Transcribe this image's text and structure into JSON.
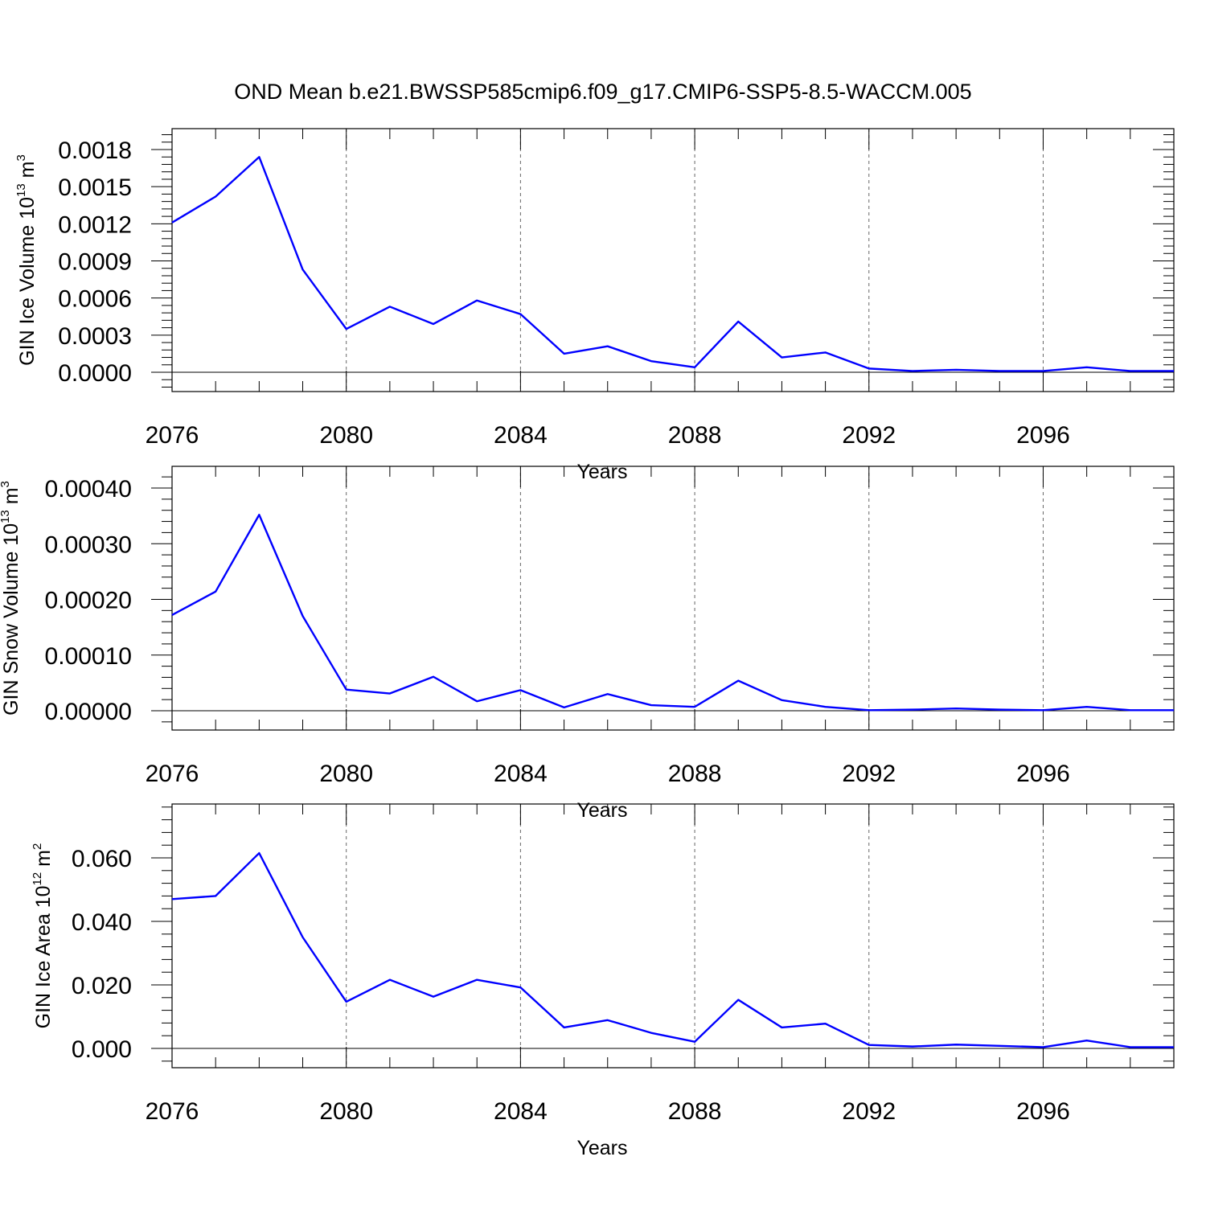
{
  "title": "OND Mean b.e21.BWSSP585cmip6.f09_g17.CMIP6-SSP5-8.5-WACCM.005",
  "colors": {
    "line": "#0000ff",
    "axis": "#000000",
    "grid": "#666666"
  },
  "chart_data": [
    {
      "type": "line",
      "ylabel": {
        "text": "GIN Ice Volume 10",
        "exp": "13",
        "unit": " m",
        "unit_exp": "3"
      },
      "xlabel": "Years",
      "xlim": [
        2076,
        2099
      ],
      "ylim": [
        0,
        0.0018
      ],
      "yticks": [
        {
          "v": 0,
          "label": "0.0000"
        },
        {
          "v": 0.0003,
          "label": "0.0003"
        },
        {
          "v": 0.0006,
          "label": "0.0006"
        },
        {
          "v": 0.0009,
          "label": "0.0009"
        },
        {
          "v": 0.0012,
          "label": "0.0012"
        },
        {
          "v": 0.0015,
          "label": "0.0015"
        },
        {
          "v": 0.0018,
          "label": "0.0018"
        }
      ],
      "xticks": [
        2076,
        2080,
        2084,
        2088,
        2092,
        2096
      ],
      "grid": "vertical-dashed",
      "x": [
        2076,
        2077,
        2078,
        2079,
        2080,
        2081,
        2082,
        2083,
        2084,
        2085,
        2086,
        2087,
        2088,
        2089,
        2090,
        2091,
        2092,
        2093,
        2094,
        2095,
        2096,
        2097,
        2098,
        2099
      ],
      "series": [
        {
          "values": [
            0.00121,
            0.00142,
            0.00174,
            0.00083,
            0.00035,
            0.00053,
            0.00039,
            0.00058,
            0.00047,
            0.00015,
            0.00021,
            9e-05,
            4e-05,
            0.00041,
            0.00012,
            0.00016,
            3e-05,
            1e-05,
            2e-05,
            1e-05,
            1e-05,
            4e-05,
            1e-05,
            1e-05
          ]
        }
      ]
    },
    {
      "type": "line",
      "ylabel": {
        "text": "GIN Snow Volume 10",
        "exp": "13",
        "unit": " m",
        "unit_exp": "3"
      },
      "xlabel": "Years",
      "xlim": [
        2076,
        2099
      ],
      "ylim": [
        0,
        0.0004
      ],
      "yticks": [
        {
          "v": 0,
          "label": "0.00000"
        },
        {
          "v": 0.0001,
          "label": "0.00010"
        },
        {
          "v": 0.0002,
          "label": "0.00020"
        },
        {
          "v": 0.0003,
          "label": "0.00030"
        },
        {
          "v": 0.0004,
          "label": "0.00040"
        }
      ],
      "xticks": [
        2076,
        2080,
        2084,
        2088,
        2092,
        2096
      ],
      "grid": "vertical-dashed",
      "x": [
        2076,
        2077,
        2078,
        2079,
        2080,
        2081,
        2082,
        2083,
        2084,
        2085,
        2086,
        2087,
        2088,
        2089,
        2090,
        2091,
        2092,
        2093,
        2094,
        2095,
        2096,
        2097,
        2098,
        2099
      ],
      "series": [
        {
          "values": [
            0.000172,
            0.000214,
            0.000352,
            0.00017,
            3.8e-05,
            3.1e-05,
            6.1e-05,
            1.7e-05,
            3.7e-05,
            6e-06,
            3e-05,
            1e-05,
            7e-06,
            5.4e-05,
            1.9e-05,
            7e-06,
            1e-06,
            2e-06,
            4e-06,
            2e-06,
            1e-06,
            7e-06,
            1e-06,
            1e-06
          ]
        }
      ]
    },
    {
      "type": "line",
      "ylabel": {
        "text": "GIN Ice Area 10",
        "exp": "12",
        "unit": " m",
        "unit_exp": "2"
      },
      "xlabel": "Years",
      "xlim": [
        2076,
        2099
      ],
      "ylim": [
        0,
        0.07
      ],
      "yticks": [
        {
          "v": 0,
          "label": "0.000"
        },
        {
          "v": 0.02,
          "label": "0.020"
        },
        {
          "v": 0.04,
          "label": "0.040"
        },
        {
          "v": 0.06,
          "label": "0.060"
        }
      ],
      "xticks": [
        2076,
        2080,
        2084,
        2088,
        2092,
        2096
      ],
      "grid": "vertical-dashed",
      "x": [
        2076,
        2077,
        2078,
        2079,
        2080,
        2081,
        2082,
        2083,
        2084,
        2085,
        2086,
        2087,
        2088,
        2089,
        2090,
        2091,
        2092,
        2093,
        2094,
        2095,
        2096,
        2097,
        2098,
        2099
      ],
      "series": [
        {
          "values": [
            0.047,
            0.048,
            0.0615,
            0.035,
            0.0147,
            0.0216,
            0.0163,
            0.0216,
            0.0192,
            0.0066,
            0.0089,
            0.0049,
            0.0021,
            0.0153,
            0.0066,
            0.0078,
            0.0011,
            0.0006,
            0.0012,
            0.0008,
            0.0004,
            0.0025,
            0.0004,
            0.0004
          ]
        }
      ]
    }
  ]
}
